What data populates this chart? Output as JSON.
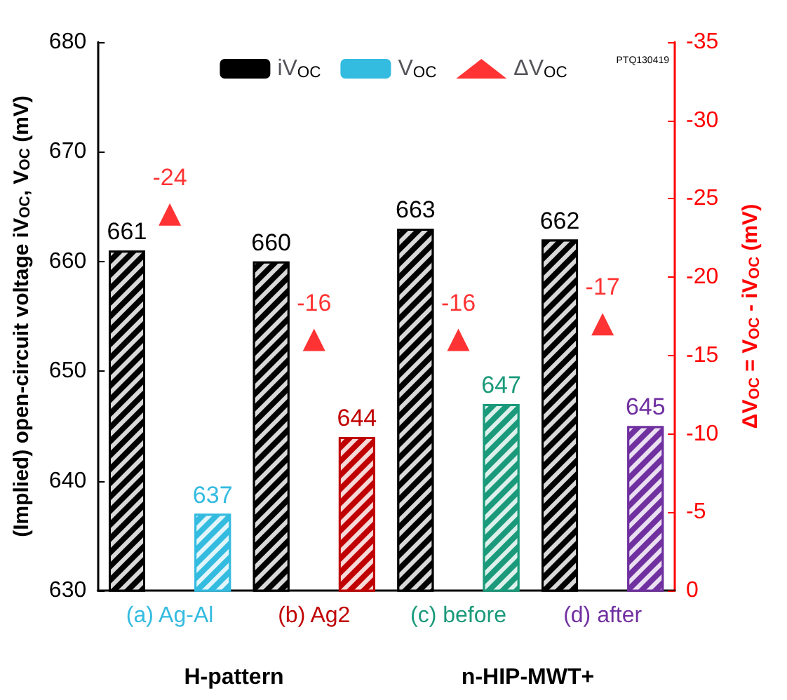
{
  "chart_data": {
    "type": "bar",
    "categories": [
      "(a) Ag-Al",
      "(b) Ag2",
      "(c) before",
      "(d) after"
    ],
    "ylabel": "(Implied) open-circuit voltage iV$_{OC}$, V$_{OC}$ (mV)",
    "y2label": "ΔV$_{OC}$ = V$_{OC}$ - iV$_{OC}$ (mV)",
    "ylim": [
      630,
      680
    ],
    "yticks": [
      630,
      640,
      650,
      660,
      670,
      680
    ],
    "y2lim": [
      0,
      -35
    ],
    "y2ticks": [
      0,
      -5,
      -10,
      -15,
      -20,
      -25,
      -30,
      -35
    ],
    "series": [
      {
        "name": "iV$_{OC}$",
        "color": "#000000",
        "values": [
          661,
          660,
          663,
          662
        ]
      },
      {
        "name": "V$_{OC}$",
        "colors": [
          "#33bbe0",
          "#c00000",
          "#1a9a7a",
          "#7030a0"
        ],
        "values": [
          637,
          644,
          647,
          645
        ]
      },
      {
        "name": "ΔV$_{OC}$",
        "type": "scatter",
        "axis": "y2",
        "color": "#ff0000",
        "x": [
          "(a) Ag-Al",
          "(b) Ag2",
          "(c) before",
          "(d) after"
        ],
        "values": [
          -24,
          -16,
          -16,
          -17
        ]
      }
    ],
    "data_labels": true,
    "marker": "triangle",
    "legend": "top",
    "annotations": [
      "H-pattern",
      "n-HIP-MWT+",
      "PTQ130419"
    ]
  }
}
